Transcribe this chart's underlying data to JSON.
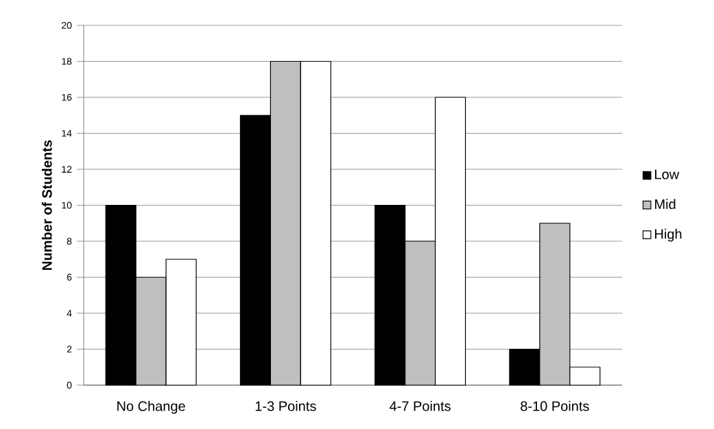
{
  "chart_data": {
    "type": "bar",
    "ylabel": "Number of Students",
    "categories": [
      "No Change",
      "1-3 Points",
      "4-7 Points",
      "8-10 Points"
    ],
    "series": [
      {
        "name": "Low",
        "color": "#000000",
        "values": [
          10,
          15,
          10,
          2
        ]
      },
      {
        "name": "Mid",
        "color": "#bfbfbf",
        "values": [
          6,
          18,
          8,
          9
        ]
      },
      {
        "name": "High",
        "color": "#ffffff",
        "values": [
          7,
          18,
          16,
          1
        ]
      }
    ],
    "ylim": [
      0,
      20
    ],
    "yticks": [
      0,
      2,
      4,
      6,
      8,
      10,
      12,
      14,
      16,
      18,
      20
    ],
    "grid": "y",
    "legend": "right"
  }
}
